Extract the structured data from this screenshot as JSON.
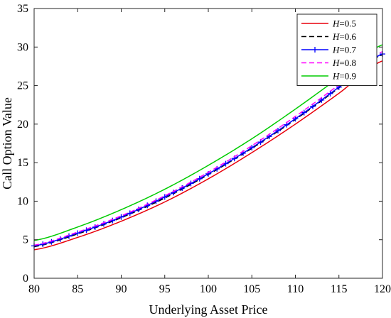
{
  "chart_data": {
    "type": "line",
    "title": "",
    "xlabel": "Underlying Asset Price",
    "ylabel": "Call Option Value",
    "xlim": [
      80,
      120
    ],
    "ylim": [
      0,
      35
    ],
    "xticks": [
      80,
      85,
      90,
      95,
      100,
      105,
      110,
      115,
      120
    ],
    "yticks": [
      0,
      5,
      10,
      15,
      20,
      25,
      30,
      35
    ],
    "grid": false,
    "legend_position": "top-right",
    "x": [
      80,
      85,
      90,
      95,
      100,
      105,
      110,
      115,
      120
    ],
    "series": [
      {
        "name": "H=0.5",
        "color": "#e8000b",
        "style": "solid",
        "marker": "none",
        "values": [
          3.7,
          5.3,
          7.4,
          9.9,
          12.9,
          16.3,
          20.0,
          24.0,
          28.2
        ]
      },
      {
        "name": "H=0.6",
        "color": "#000000",
        "style": "dashed",
        "marker": "none",
        "values": [
          4.1,
          5.75,
          7.85,
          10.4,
          13.45,
          16.85,
          20.6,
          24.7,
          29.0
        ]
      },
      {
        "name": "H=0.7",
        "color": "#0000ff",
        "style": "solid",
        "marker": "plus",
        "values": [
          4.2,
          5.85,
          7.95,
          10.55,
          13.55,
          16.95,
          20.7,
          24.8,
          29.1
        ]
      },
      {
        "name": "H=0.8",
        "color": "#ff00ff",
        "style": "dashed",
        "marker": "none",
        "values": [
          4.3,
          6.0,
          8.1,
          10.7,
          13.75,
          17.2,
          21.0,
          25.1,
          29.4
        ]
      },
      {
        "name": "H=0.9",
        "color": "#00cc00",
        "style": "solid",
        "marker": "none",
        "values": [
          4.9,
          6.65,
          8.9,
          11.55,
          14.65,
          18.1,
          21.95,
          26.05,
          30.3
        ]
      }
    ]
  }
}
